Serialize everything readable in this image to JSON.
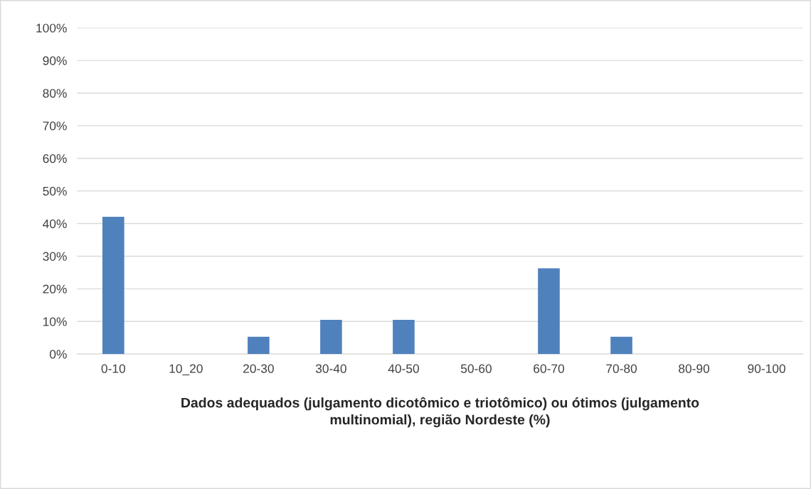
{
  "chart_data": {
    "type": "bar",
    "xlabel": "Dados adequados (julgamento dicotômico e triotômico) ou ótimos (julgamento multinomial), região Nordeste (%)",
    "categories": [
      "0-10",
      "10_20",
      "20-30",
      "30-40",
      "40-50",
      "50-60",
      "60-70",
      "70-80",
      "80-90",
      "90-100"
    ],
    "values": [
      42.1,
      0,
      5.3,
      10.5,
      10.5,
      0,
      26.3,
      5.3,
      0,
      0
    ],
    "color": "#4f81bd",
    "ylim": [
      0,
      100
    ],
    "yticks": [
      {
        "value": 0,
        "label": "0%"
      },
      {
        "value": 10,
        "label": "10%"
      },
      {
        "value": 20,
        "label": "20%"
      },
      {
        "value": 30,
        "label": "30%"
      },
      {
        "value": 40,
        "label": "40%"
      },
      {
        "value": 50,
        "label": "50%"
      },
      {
        "value": 60,
        "label": "60%"
      },
      {
        "value": 70,
        "label": "70%"
      },
      {
        "value": 80,
        "label": "80%"
      },
      {
        "value": 90,
        "label": "90%"
      },
      {
        "value": 100,
        "label": "100%"
      }
    ],
    "grid": "y",
    "legend": false
  }
}
